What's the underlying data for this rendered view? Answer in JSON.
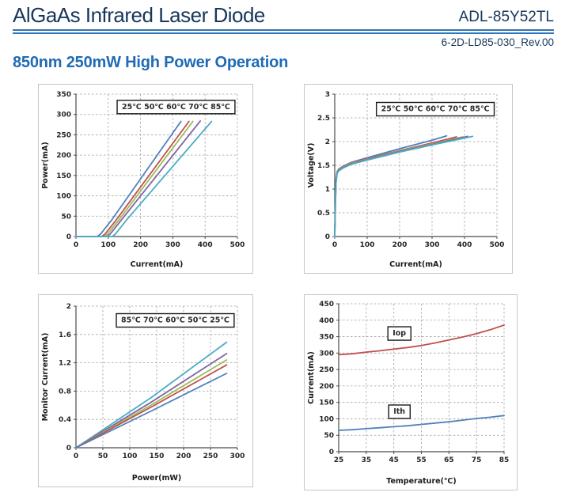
{
  "header": {
    "title": "AlGaAs Infrared Laser Diode",
    "model": "ADL-85Y52TL",
    "doc_number": "6-2D-LD85-030_Rev.00",
    "section_heading": "850nm 250mW High Power Operation"
  },
  "palette": {
    "blue": "#4F81BD",
    "red": "#C0504D",
    "green": "#9BBB59",
    "purple": "#8064A2",
    "cyan": "#4BACC6",
    "grid": "#a0a0a0",
    "axis": "#4a4a4a",
    "navy": "#17375D",
    "rule_blue": "#2E74B6",
    "heading_blue": "#1F6BB5"
  },
  "chart_data": [
    {
      "type": "line",
      "name": "power-vs-current",
      "xlabel": "Current(mA)",
      "ylabel": "Power(mA)",
      "xlim": [
        0,
        500
      ],
      "ylim": [
        0,
        350
      ],
      "xticks": [
        0,
        100,
        200,
        300,
        400,
        500
      ],
      "yticks": [
        0,
        50,
        100,
        150,
        200,
        250,
        300,
        350
      ],
      "grid": true,
      "legend": {
        "text": "25℃ 50℃ 60℃ 70℃ 85℃",
        "fx": 0.62,
        "fy": 0.085
      },
      "series": [
        {
          "name": "25℃",
          "color": "#4F81BD",
          "points": [
            [
              0,
              0
            ],
            [
              66,
              0
            ],
            [
              76,
              6
            ],
            [
              110,
              40
            ],
            [
              325,
              283
            ]
          ]
        },
        {
          "name": "50℃",
          "color": "#C0504D",
          "points": [
            [
              0,
              0
            ],
            [
              80,
              0
            ],
            [
              90,
              6
            ],
            [
              124,
              40
            ],
            [
              350,
              283
            ]
          ]
        },
        {
          "name": "60℃",
          "color": "#9BBB59",
          "points": [
            [
              0,
              0
            ],
            [
              88,
              0
            ],
            [
              98,
              6
            ],
            [
              132,
              40
            ],
            [
              362,
              283
            ]
          ]
        },
        {
          "name": "70℃",
          "color": "#8064A2",
          "points": [
            [
              0,
              0
            ],
            [
              96,
              0
            ],
            [
              106,
              6
            ],
            [
              140,
              40
            ],
            [
              385,
              284
            ]
          ]
        },
        {
          "name": "85℃",
          "color": "#4BACC6",
          "points": [
            [
              0,
              0
            ],
            [
              112,
              0
            ],
            [
              122,
              6
            ],
            [
              156,
              40
            ],
            [
              420,
              283
            ]
          ]
        }
      ]
    },
    {
      "type": "line",
      "name": "voltage-vs-current",
      "xlabel": "Current(mA)",
      "ylabel": "Voltage(V)",
      "xlim": [
        0,
        500
      ],
      "ylim": [
        0,
        3
      ],
      "xticks": [
        0,
        100,
        200,
        300,
        400,
        500
      ],
      "yticks": [
        0,
        0.5,
        1,
        1.5,
        2,
        2.5,
        3
      ],
      "grid": true,
      "legend": {
        "text": "25℃ 50℃ 60℃ 70℃ 85℃",
        "fx": 0.62,
        "fy": 0.1
      },
      "series": [
        {
          "name": "25℃",
          "color": "#4F81BD",
          "points": [
            [
              0,
              0
            ],
            [
              2,
              0.7
            ],
            [
              4,
              1.2
            ],
            [
              7,
              1.36
            ],
            [
              12,
              1.42
            ],
            [
              25,
              1.48
            ],
            [
              50,
              1.56
            ],
            [
              100,
              1.66
            ],
            [
              200,
              1.85
            ],
            [
              300,
              2.03
            ],
            [
              345,
              2.12
            ]
          ]
        },
        {
          "name": "50℃",
          "color": "#C0504D",
          "points": [
            [
              0,
              0
            ],
            [
              2,
              0.68
            ],
            [
              4,
              1.18
            ],
            [
              7,
              1.35
            ],
            [
              12,
              1.41
            ],
            [
              25,
              1.47
            ],
            [
              50,
              1.55
            ],
            [
              100,
              1.64
            ],
            [
              200,
              1.81
            ],
            [
              300,
              1.97
            ],
            [
              375,
              2.1
            ]
          ]
        },
        {
          "name": "60℃",
          "color": "#9BBB59",
          "points": [
            [
              0,
              0
            ],
            [
              2,
              0.66
            ],
            [
              4,
              1.16
            ],
            [
              7,
              1.34
            ],
            [
              12,
              1.4
            ],
            [
              25,
              1.46
            ],
            [
              50,
              1.54
            ],
            [
              100,
              1.63
            ],
            [
              200,
              1.8
            ],
            [
              300,
              1.95
            ],
            [
              395,
              2.1
            ]
          ]
        },
        {
          "name": "70℃",
          "color": "#8064A2",
          "points": [
            [
              0,
              0
            ],
            [
              2,
              0.64
            ],
            [
              4,
              1.14
            ],
            [
              7,
              1.33
            ],
            [
              12,
              1.39
            ],
            [
              25,
              1.45
            ],
            [
              50,
              1.53
            ],
            [
              100,
              1.62
            ],
            [
              200,
              1.79
            ],
            [
              300,
              1.94
            ],
            [
              410,
              2.11
            ]
          ]
        },
        {
          "name": "85℃",
          "color": "#4BACC6",
          "points": [
            [
              0,
              0
            ],
            [
              2,
              0.62
            ],
            [
              4,
              1.12
            ],
            [
              7,
              1.32
            ],
            [
              12,
              1.38
            ],
            [
              25,
              1.44
            ],
            [
              50,
              1.52
            ],
            [
              100,
              1.61
            ],
            [
              200,
              1.78
            ],
            [
              300,
              1.93
            ],
            [
              425,
              2.11
            ]
          ]
        }
      ]
    },
    {
      "type": "line",
      "name": "monitor-current-vs-power",
      "xlabel": "Power(mW)",
      "ylabel": "Monitor Current(mA)",
      "xlim": [
        0,
        300
      ],
      "ylim": [
        0,
        2
      ],
      "xticks": [
        0,
        50,
        100,
        150,
        200,
        250,
        300
      ],
      "yticks": [
        0,
        0.4,
        0.8,
        1.2,
        1.6,
        2
      ],
      "grid": true,
      "legend": {
        "text": "85℃ 70℃ 60℃ 50℃ 25℃",
        "fx": 0.615,
        "fy": 0.095
      },
      "series": [
        {
          "name": "85℃",
          "color": "#4BACC6",
          "points": [
            [
              0,
              0
            ],
            [
              140,
              0.71
            ],
            [
              280,
              1.49
            ]
          ]
        },
        {
          "name": "70℃",
          "color": "#8064A2",
          "points": [
            [
              0,
              0
            ],
            [
              140,
              0.645
            ],
            [
              280,
              1.33
            ]
          ]
        },
        {
          "name": "60℃",
          "color": "#9BBB59",
          "points": [
            [
              0,
              0
            ],
            [
              140,
              0.605
            ],
            [
              280,
              1.24
            ]
          ]
        },
        {
          "name": "50℃",
          "color": "#C0504D",
          "points": [
            [
              0,
              0
            ],
            [
              140,
              0.575
            ],
            [
              280,
              1.17
            ]
          ]
        },
        {
          "name": "25℃",
          "color": "#4F81BD",
          "points": [
            [
              0,
              0
            ],
            [
              140,
              0.52
            ],
            [
              280,
              1.05
            ]
          ]
        }
      ]
    },
    {
      "type": "line",
      "name": "current-vs-temperature",
      "xlabel": "Temperature(℃)",
      "ylabel": "Current(mA)",
      "xlim": [
        25,
        85
      ],
      "ylim": [
        0,
        450
      ],
      "xticks": [
        25,
        35,
        45,
        55,
        65,
        75,
        85
      ],
      "yticks": [
        0,
        50,
        100,
        150,
        200,
        250,
        300,
        350,
        400,
        450
      ],
      "grid": true,
      "annotations": [
        {
          "text": "Iop",
          "x": 47,
          "y": 362
        },
        {
          "text": "Ith",
          "x": 47,
          "y": 124
        }
      ],
      "series": [
        {
          "name": "Iop",
          "color": "#C0504D",
          "points": [
            [
              25,
              295
            ],
            [
              30,
              298
            ],
            [
              35,
              303
            ],
            [
              40,
              307
            ],
            [
              45,
              312
            ],
            [
              50,
              317
            ],
            [
              55,
              323
            ],
            [
              60,
              331
            ],
            [
              65,
              340
            ],
            [
              70,
              349
            ],
            [
              75,
              359
            ],
            [
              80,
              371
            ],
            [
              85,
              385
            ]
          ]
        },
        {
          "name": "Ith",
          "color": "#4F81BD",
          "points": [
            [
              25,
              65
            ],
            [
              30,
              67
            ],
            [
              35,
              70
            ],
            [
              40,
              73
            ],
            [
              45,
              76
            ],
            [
              50,
              79
            ],
            [
              55,
              83
            ],
            [
              60,
              87
            ],
            [
              65,
              91
            ],
            [
              70,
              96
            ],
            [
              75,
              101
            ],
            [
              80,
              105
            ],
            [
              85,
              110
            ]
          ]
        }
      ]
    }
  ]
}
